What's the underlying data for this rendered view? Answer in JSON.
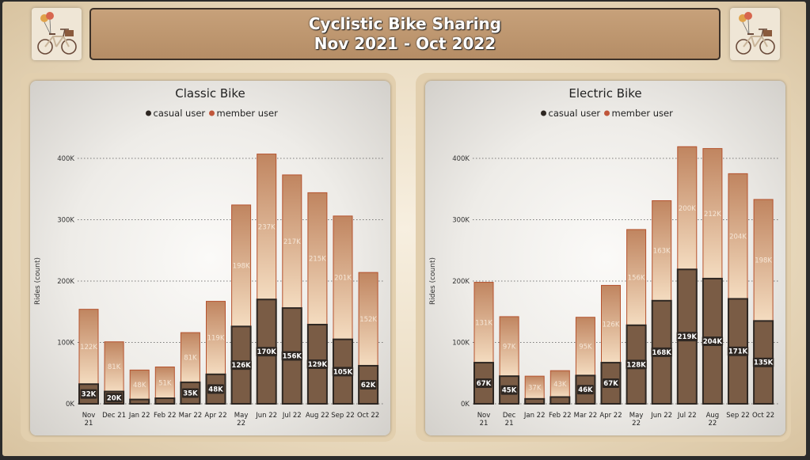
{
  "header": {
    "title_line1": "Cyclistic Bike Sharing",
    "title_line2": "Nov 2021 - Oct 2022"
  },
  "colors": {
    "casual": "#2e2722",
    "casual_fill": "#7a5c45",
    "member_fill_top": "#c08560",
    "member_fill_bottom": "#f4dcc0",
    "member_border": "#b5532f",
    "legend_member": "#c0563a"
  },
  "chart_data": [
    {
      "type": "bar",
      "stacked": true,
      "title": "Classic Bike",
      "legend": [
        "casual user",
        "member user"
      ],
      "ylabel": "Rides (count)",
      "ylim": [
        0,
        400000
      ],
      "yticks": [
        "0K",
        "100K",
        "200K",
        "300K",
        "400K"
      ],
      "categories": [
        "Nov 21",
        "Dec 21",
        "Jan 22",
        "Feb 22",
        "Mar 22",
        "Apr 22",
        "May 22",
        "Jun 22",
        "Jul 22",
        "Aug 22",
        "Sep 22",
        "Oct 22"
      ],
      "series": [
        {
          "name": "casual user",
          "values": [
            32000,
            20000,
            7000,
            9000,
            35000,
            48000,
            126000,
            170000,
            156000,
            129000,
            105000,
            62000
          ],
          "labels": [
            "32K",
            "20K",
            "",
            "",
            "35K",
            "48K",
            "126K",
            "170K",
            "156K",
            "129K",
            "105K",
            "62K"
          ]
        },
        {
          "name": "member user",
          "values": [
            122000,
            81000,
            48000,
            51000,
            81000,
            119000,
            198000,
            237000,
            217000,
            215000,
            201000,
            152000
          ],
          "labels": [
            "122K",
            "81K",
            "48K",
            "51K",
            "81K",
            "119K",
            "198K",
            "237K",
            "217K",
            "215K",
            "201K",
            "152K"
          ]
        }
      ]
    },
    {
      "type": "bar",
      "stacked": true,
      "title": "Electric Bike",
      "legend": [
        "casual user",
        "member user"
      ],
      "ylabel": "Rides (count)",
      "ylim": [
        0,
        400000
      ],
      "yticks": [
        "0K",
        "100K",
        "200K",
        "300K",
        "400K"
      ],
      "categories": [
        "Nov 21",
        "Dec 21",
        "Jan 22",
        "Feb 22",
        "Mar 22",
        "Apr 22",
        "May 22",
        "Jun 22",
        "Jul 22",
        "Aug 22",
        "Sep 22",
        "Oct 22"
      ],
      "series": [
        {
          "name": "casual user",
          "values": [
            67000,
            45000,
            8000,
            11000,
            46000,
            67000,
            128000,
            168000,
            219000,
            204000,
            171000,
            135000
          ],
          "labels": [
            "67K",
            "45K",
            "",
            "",
            "46K",
            "67K",
            "128K",
            "168K",
            "219K",
            "204K",
            "171K",
            "135K"
          ]
        },
        {
          "name": "member user",
          "values": [
            131000,
            97000,
            37000,
            43000,
            95000,
            126000,
            156000,
            163000,
            200000,
            212000,
            204000,
            198000
          ],
          "labels": [
            "131K",
            "97K",
            "37K",
            "43K",
            "95K",
            "126K",
            "156K",
            "163K",
            "200K",
            "212K",
            "204K",
            "198K"
          ]
        }
      ]
    }
  ]
}
